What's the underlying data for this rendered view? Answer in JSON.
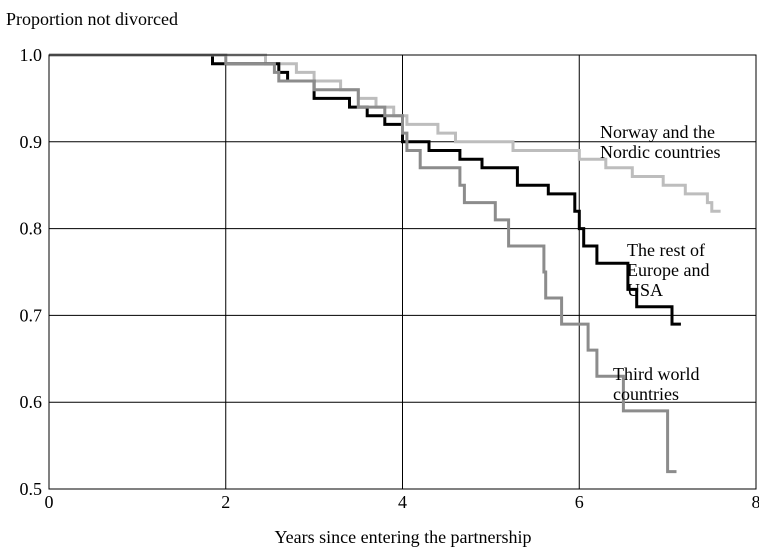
{
  "chart_data": {
    "type": "line",
    "ylabel": "Proportion not divorced",
    "xlabel": "Years since entering the partnership",
    "xlim": [
      0,
      8
    ],
    "ylim": [
      0.5,
      1.0
    ],
    "x_ticks": [
      "0",
      "2",
      "4",
      "6",
      "8"
    ],
    "y_ticks": [
      "0.5",
      "0.6",
      "0.7",
      "0.8",
      "0.9",
      "1.0"
    ],
    "grid": true,
    "step": true,
    "series": [
      {
        "name": "Norway and the Nordic countries",
        "label_lines": [
          "Norway and the",
          "Nordic countries"
        ],
        "color": "#bdbdbd",
        "points": [
          [
            0,
            1.0
          ],
          [
            2.45,
            1.0
          ],
          [
            2.45,
            0.99
          ],
          [
            2.8,
            0.99
          ],
          [
            2.8,
            0.98
          ],
          [
            3.0,
            0.98
          ],
          [
            3.0,
            0.97
          ],
          [
            3.3,
            0.97
          ],
          [
            3.3,
            0.96
          ],
          [
            3.5,
            0.96
          ],
          [
            3.5,
            0.95
          ],
          [
            3.7,
            0.95
          ],
          [
            3.7,
            0.94
          ],
          [
            3.9,
            0.94
          ],
          [
            3.9,
            0.93
          ],
          [
            4.05,
            0.93
          ],
          [
            4.05,
            0.92
          ],
          [
            4.4,
            0.92
          ],
          [
            4.4,
            0.91
          ],
          [
            4.6,
            0.91
          ],
          [
            4.6,
            0.9
          ],
          [
            5.25,
            0.9
          ],
          [
            5.25,
            0.89
          ],
          [
            6.0,
            0.89
          ],
          [
            6.0,
            0.88
          ],
          [
            6.3,
            0.88
          ],
          [
            6.3,
            0.87
          ],
          [
            6.6,
            0.87
          ],
          [
            6.6,
            0.86
          ],
          [
            6.95,
            0.86
          ],
          [
            6.95,
            0.85
          ],
          [
            7.2,
            0.85
          ],
          [
            7.2,
            0.84
          ],
          [
            7.45,
            0.84
          ],
          [
            7.45,
            0.83
          ],
          [
            7.5,
            0.83
          ],
          [
            7.5,
            0.82
          ],
          [
            7.6,
            0.82
          ]
        ]
      },
      {
        "name": "The rest of Europe and USA",
        "label_lines": [
          "The rest of",
          "Europe and",
          "USA"
        ],
        "color": "#000000",
        "points": [
          [
            0,
            1.0
          ],
          [
            1.85,
            1.0
          ],
          [
            1.85,
            0.99
          ],
          [
            2.6,
            0.99
          ],
          [
            2.6,
            0.98
          ],
          [
            2.7,
            0.98
          ],
          [
            2.7,
            0.97
          ],
          [
            3.0,
            0.97
          ],
          [
            3.0,
            0.95
          ],
          [
            3.4,
            0.95
          ],
          [
            3.4,
            0.94
          ],
          [
            3.6,
            0.94
          ],
          [
            3.6,
            0.93
          ],
          [
            3.8,
            0.93
          ],
          [
            3.8,
            0.92
          ],
          [
            4.0,
            0.92
          ],
          [
            4.0,
            0.9
          ],
          [
            4.3,
            0.9
          ],
          [
            4.3,
            0.89
          ],
          [
            4.65,
            0.89
          ],
          [
            4.65,
            0.88
          ],
          [
            4.9,
            0.88
          ],
          [
            4.9,
            0.87
          ],
          [
            5.3,
            0.87
          ],
          [
            5.3,
            0.85
          ],
          [
            5.65,
            0.85
          ],
          [
            5.65,
            0.84
          ],
          [
            5.95,
            0.84
          ],
          [
            5.95,
            0.82
          ],
          [
            6.0,
            0.82
          ],
          [
            6.0,
            0.8
          ],
          [
            6.05,
            0.8
          ],
          [
            6.05,
            0.78
          ],
          [
            6.2,
            0.78
          ],
          [
            6.2,
            0.76
          ],
          [
            6.55,
            0.76
          ],
          [
            6.55,
            0.73
          ],
          [
            6.65,
            0.73
          ],
          [
            6.65,
            0.71
          ],
          [
            7.05,
            0.71
          ],
          [
            7.05,
            0.69
          ],
          [
            7.15,
            0.69
          ]
        ]
      },
      {
        "name": "Third world countries",
        "label_lines": [
          "Third world",
          "countries"
        ],
        "color": "#8c8c8c",
        "points": [
          [
            0,
            1.0
          ],
          [
            2.0,
            1.0
          ],
          [
            2.0,
            0.99
          ],
          [
            2.55,
            0.99
          ],
          [
            2.55,
            0.98
          ],
          [
            2.6,
            0.98
          ],
          [
            2.6,
            0.97
          ],
          [
            3.0,
            0.97
          ],
          [
            3.0,
            0.96
          ],
          [
            3.5,
            0.96
          ],
          [
            3.5,
            0.94
          ],
          [
            3.8,
            0.94
          ],
          [
            3.8,
            0.93
          ],
          [
            4.0,
            0.93
          ],
          [
            4.0,
            0.91
          ],
          [
            4.05,
            0.91
          ],
          [
            4.05,
            0.89
          ],
          [
            4.2,
            0.89
          ],
          [
            4.2,
            0.87
          ],
          [
            4.65,
            0.87
          ],
          [
            4.65,
            0.85
          ],
          [
            4.7,
            0.85
          ],
          [
            4.7,
            0.83
          ],
          [
            5.05,
            0.83
          ],
          [
            5.05,
            0.81
          ],
          [
            5.2,
            0.81
          ],
          [
            5.2,
            0.78
          ],
          [
            5.6,
            0.78
          ],
          [
            5.6,
            0.75
          ],
          [
            5.62,
            0.75
          ],
          [
            5.62,
            0.72
          ],
          [
            5.8,
            0.72
          ],
          [
            5.8,
            0.69
          ],
          [
            6.1,
            0.69
          ],
          [
            6.1,
            0.66
          ],
          [
            6.2,
            0.66
          ],
          [
            6.2,
            0.63
          ],
          [
            6.5,
            0.63
          ],
          [
            6.5,
            0.59
          ],
          [
            7.0,
            0.59
          ],
          [
            7.0,
            0.52
          ],
          [
            7.1,
            0.52
          ]
        ]
      }
    ]
  }
}
